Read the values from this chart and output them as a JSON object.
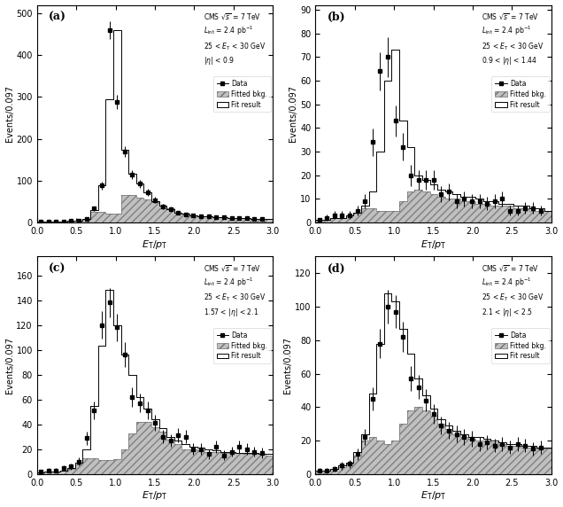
{
  "bin_width": 0.097,
  "x_min": 0,
  "x_max": 3,
  "subplots": [
    {
      "label": "(a)",
      "eta_line1": "CMS $\\sqrt{s}$ = 7 TeV",
      "eta_line2": "$L_{\\rm int}$ = 2.4 pb$^{-1}$",
      "eta_line3": "25 < $E_{\\rm T}$ < 30 GeV",
      "eta_line4": "|$\\eta$| < 0.9",
      "ylim": [
        0,
        520
      ],
      "yticks": [
        0,
        100,
        200,
        300,
        400,
        500
      ],
      "fit_vals": [
        1,
        1,
        1,
        2,
        3,
        5,
        8,
        30,
        88,
        295,
        460,
        173,
        117,
        92,
        72,
        50,
        40,
        32,
        24,
        20,
        17,
        15,
        14,
        13,
        12,
        11,
        10,
        10,
        9,
        8,
        8
      ],
      "bkg_vals": [
        1,
        1,
        1,
        2,
        3,
        5,
        8,
        25,
        25,
        22,
        20,
        65,
        65,
        60,
        55,
        48,
        40,
        33,
        24,
        20,
        17,
        15,
        14,
        13,
        12,
        11,
        10,
        10,
        9,
        8,
        8
      ],
      "data_y": [
        1,
        1,
        1,
        2,
        4,
        5,
        8,
        33,
        88,
        460,
        288,
        170,
        115,
        92,
        72,
        53,
        38,
        32,
        23,
        19,
        16,
        15,
        14,
        13,
        12,
        11,
        10,
        10,
        9,
        8
      ],
      "data_err": [
        1,
        1,
        1,
        1.4,
        2,
        2.2,
        2.8,
        5.7,
        9.4,
        21,
        17,
        13,
        10.7,
        9.6,
        8.5,
        7.3,
        6.2,
        5.7,
        4.8,
        4.4,
        4.0,
        3.9,
        3.7,
        3.6,
        3.5,
        3.3,
        3.2,
        3.2,
        3.0,
        2.8
      ]
    },
    {
      "label": "(b)",
      "eta_line1": "CMS $\\sqrt{s}$ = 7 TeV",
      "eta_line2": "$L_{\\rm int}$ = 2.4 pb$^{-1}$",
      "eta_line3": "25 < $E_{\\rm T}$ < 30 GeV",
      "eta_line4": "0.9 < |$\\eta$| < 1.44",
      "ylim": [
        0,
        92
      ],
      "yticks": [
        0,
        10,
        20,
        30,
        40,
        50,
        60,
        70,
        80,
        90
      ],
      "fit_vals": [
        1,
        1,
        2,
        2,
        3,
        4,
        7,
        13,
        30,
        60,
        73,
        43,
        32,
        20,
        18,
        16,
        14,
        13,
        12,
        11,
        11,
        10,
        9,
        9,
        8,
        8,
        7,
        7,
        6,
        6,
        5
      ],
      "bkg_vals": [
        1,
        1,
        2,
        2,
        3,
        4,
        6,
        6,
        5,
        5,
        5,
        9,
        13,
        14,
        13,
        12,
        11,
        10,
        10,
        9,
        9,
        8,
        8,
        7,
        7,
        7,
        6,
        6,
        5,
        5,
        5
      ],
      "data_y": [
        1,
        2,
        3,
        3,
        3,
        5,
        9,
        34,
        64,
        70,
        43,
        32,
        20,
        18,
        18,
        18,
        12,
        13,
        9,
        10,
        9,
        9,
        8,
        9,
        10,
        5,
        5,
        6,
        6,
        5
      ],
      "data_err": [
        1,
        1.4,
        1.7,
        1.7,
        1.7,
        2.2,
        3.0,
        5.8,
        8.0,
        8.4,
        6.6,
        5.7,
        4.5,
        4.2,
        4.2,
        4.2,
        3.5,
        3.6,
        3.0,
        3.2,
        3.0,
        3.0,
        2.8,
        3.0,
        3.2,
        2.2,
        2.2,
        2.4,
        2.4,
        2.2
      ]
    },
    {
      "label": "(c)",
      "eta_line1": "CMS $\\sqrt{s}$ = 7 TeV",
      "eta_line2": "$L_{\\rm int}$ = 2.4 pb$^{-1}$",
      "eta_line3": "25 < $E_{\\rm T}$ < 30 GeV",
      "eta_line4": "1.57 < |$\\eta$| < 2.1",
      "ylim": [
        0,
        175
      ],
      "yticks": [
        0,
        20,
        40,
        60,
        80,
        100,
        120,
        140,
        160
      ],
      "fit_vals": [
        1,
        2,
        2,
        3,
        5,
        9,
        20,
        55,
        103,
        148,
        120,
        96,
        80,
        62,
        53,
        44,
        37,
        30,
        27,
        24,
        22,
        21,
        20,
        19,
        18,
        18,
        17,
        17,
        17,
        16,
        16
      ],
      "bkg_vals": [
        1,
        2,
        2,
        3,
        4,
        8,
        13,
        13,
        11,
        11,
        12,
        20,
        33,
        42,
        42,
        38,
        34,
        28,
        24,
        20,
        20,
        19,
        18,
        18,
        17,
        17,
        17,
        16,
        16,
        16,
        15
      ],
      "data_y": [
        2,
        3,
        3,
        5,
        6,
        10,
        29,
        51,
        120,
        138,
        118,
        96,
        62,
        57,
        51,
        41,
        30,
        27,
        31,
        30,
        20,
        20,
        16,
        22,
        15,
        18,
        22,
        20,
        18,
        17
      ],
      "data_err": [
        1.4,
        1.7,
        1.7,
        2.2,
        2.4,
        3.2,
        5.4,
        7.1,
        11.0,
        11.7,
        10.9,
        9.8,
        7.9,
        7.5,
        7.1,
        6.4,
        5.5,
        5.2,
        5.6,
        5.5,
        4.5,
        4.5,
        4.0,
        4.7,
        3.9,
        4.2,
        4.7,
        4.5,
        4.2,
        4.1
      ]
    },
    {
      "label": "(d)",
      "eta_line1": "CMS $\\sqrt{s}$ = 7 TeV",
      "eta_line2": "$L_{\\rm int}$ = 2.4 pb$^{-1}$",
      "eta_line3": "25 < $E_{\\rm T}$ < 30 GeV",
      "eta_line4": "2.1 < |$\\eta$| < 2.5",
      "ylim": [
        0,
        130
      ],
      "yticks": [
        0,
        20,
        40,
        60,
        80,
        100,
        120
      ],
      "fit_vals": [
        2,
        2,
        3,
        5,
        7,
        13,
        24,
        48,
        78,
        108,
        103,
        87,
        72,
        57,
        47,
        39,
        33,
        29,
        26,
        24,
        22,
        22,
        21,
        20,
        19,
        18,
        18,
        17,
        17,
        16,
        16
      ],
      "bkg_vals": [
        2,
        2,
        3,
        4,
        6,
        11,
        20,
        22,
        20,
        18,
        20,
        30,
        38,
        40,
        38,
        35,
        30,
        27,
        24,
        22,
        21,
        20,
        20,
        19,
        18,
        17,
        17,
        16,
        16,
        15,
        15
      ],
      "data_y": [
        2,
        2,
        3,
        5,
        6,
        12,
        22,
        45,
        78,
        100,
        97,
        82,
        57,
        52,
        44,
        36,
        29,
        26,
        24,
        22,
        21,
        18,
        19,
        17,
        18,
        16,
        18,
        17,
        15,
        16
      ],
      "data_err": [
        1.4,
        1.4,
        1.7,
        2.2,
        2.4,
        3.5,
        4.7,
        6.7,
        8.8,
        10,
        9.9,
        9.1,
        7.5,
        7.2,
        6.6,
        6.0,
        5.4,
        5.1,
        4.9,
        4.7,
        4.6,
        4.2,
        4.4,
        4.1,
        4.2,
        4.0,
        4.2,
        4.1,
        3.9,
        4.0
      ]
    }
  ]
}
